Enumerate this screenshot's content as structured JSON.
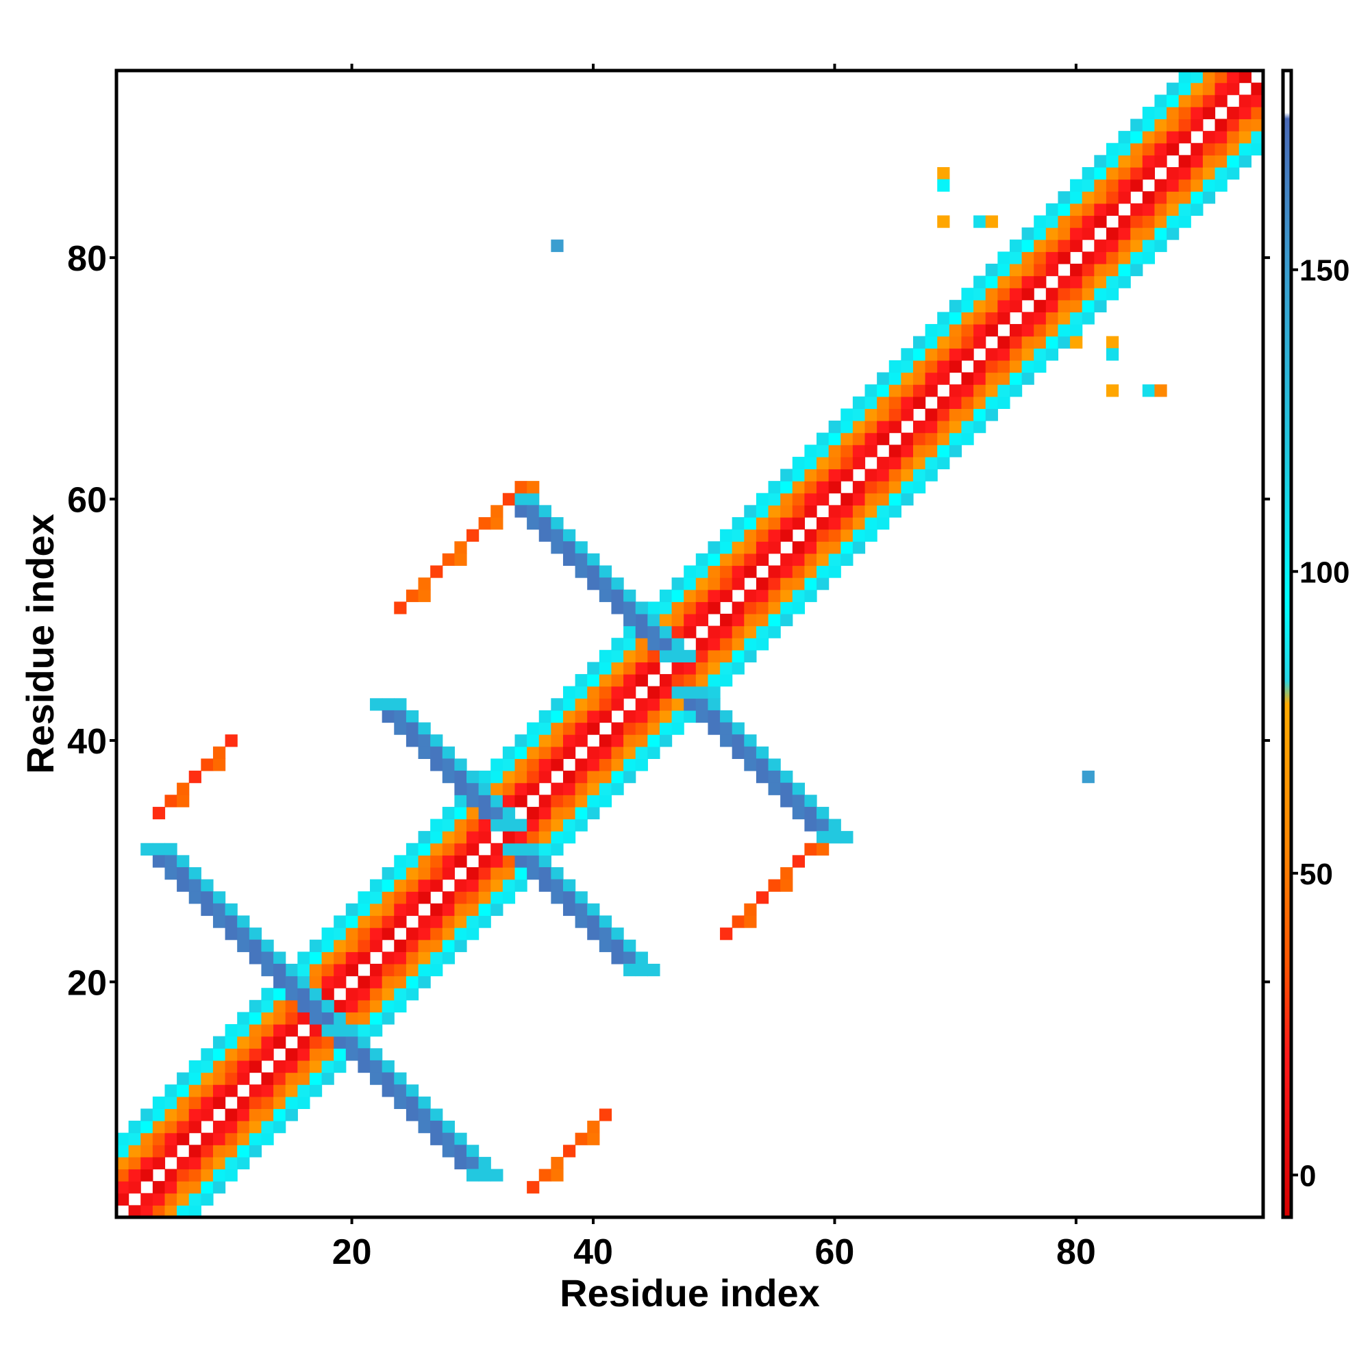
{
  "chart_data": {
    "type": "heatmap",
    "title": "",
    "xlabel": "Residue index",
    "ylabel": "Residue index",
    "xlim": [
      0.5,
      95.5
    ],
    "ylim": [
      0.5,
      95.5
    ],
    "x_ticks": [
      20,
      40,
      60,
      80
    ],
    "y_ticks": [
      20,
      40,
      60,
      80
    ],
    "x_tick_labels": [
      "20",
      "40",
      "60",
      "80"
    ],
    "y_tick_labels": [
      "20",
      "40",
      "60",
      "80"
    ],
    "grid": false,
    "legend": "colorbar-right",
    "colorbar": {
      "range": [
        -7,
        183
      ],
      "ticks": [
        0,
        50,
        100,
        150
      ],
      "tick_labels": [
        "0",
        "50",
        "100",
        "150"
      ],
      "stops": [
        {
          "value": -7,
          "color": "#d80000"
        },
        {
          "value": 20,
          "color": "#ff1a1a"
        },
        {
          "value": 35,
          "color": "#ff5500"
        },
        {
          "value": 55,
          "color": "#ff8800"
        },
        {
          "value": 78,
          "color": "#ffaa00"
        },
        {
          "value": 82,
          "color": "#28d8e8"
        },
        {
          "value": 95,
          "color": "#00ffff"
        },
        {
          "value": 120,
          "color": "#22c8e0"
        },
        {
          "value": 150,
          "color": "#3a9ed0"
        },
        {
          "value": 175,
          "color": "#4a6ab8"
        },
        {
          "value": 176,
          "color": "#ffffff"
        },
        {
          "value": 183,
          "color": "#ffffff"
        }
      ]
    },
    "diagonal_bands": [
      {
        "name": "helix-a",
        "x0": 1,
        "y0": 1,
        "len": 12,
        "phase": 0
      },
      {
        "name": "turn-a",
        "x0": 13,
        "y0": 13,
        "len": 6,
        "phase": 1
      },
      {
        "name": "helix-b",
        "x0": 18,
        "y0": 18,
        "len": 14,
        "phase": 0
      },
      {
        "name": "helix-c",
        "x0": 32,
        "y0": 32,
        "len": 12,
        "phase": 0
      },
      {
        "name": "helix-d",
        "x0": 43,
        "y0": 43,
        "len": 15,
        "phase": 1
      },
      {
        "name": "helix-e",
        "x0": 58,
        "y0": 58,
        "len": 6,
        "phase": 0
      },
      {
        "name": "helix-f",
        "x0": 63,
        "y0": 63,
        "len": 33,
        "phase": 1
      }
    ],
    "anti_bands": [
      {
        "name": "sheet-1",
        "x_start": 3,
        "y_start": 31,
        "length": 16,
        "width": 3,
        "value": 165
      },
      {
        "name": "sheet-1b",
        "x_start": 18,
        "y_start": 16,
        "length": 13,
        "width": 3,
        "value": 165
      },
      {
        "name": "sheet-2",
        "x_start": 22,
        "y_start": 43,
        "length": 11,
        "width": 3,
        "value": 165
      },
      {
        "name": "sheet-2b",
        "x_start": 33,
        "y_start": 31,
        "length": 11,
        "width": 3,
        "value": 165
      },
      {
        "name": "sheet-3",
        "x_start": 33,
        "y_start": 60,
        "length": 14,
        "width": 3,
        "value": 165
      },
      {
        "name": "sheet-3b",
        "x_start": 47,
        "y_start": 44,
        "length": 13,
        "width": 3,
        "value": 165
      }
    ],
    "anti_lines": [
      {
        "name": "long-range-1",
        "x_start": 4,
        "y_start": 34,
        "length": 7,
        "value": 25
      },
      {
        "name": "long-range-2",
        "x_start": 24,
        "y_start": 51,
        "length": 11,
        "value": 30
      },
      {
        "name": "long-range-3",
        "x_start": 35,
        "y_start": 3,
        "length": 7,
        "value": 30
      },
      {
        "name": "long-range-4",
        "x_start": 51,
        "y_start": 24,
        "length": 8,
        "value": 25
      }
    ],
    "points": [
      {
        "x": 37,
        "y": 81,
        "value": 150
      },
      {
        "x": 81,
        "y": 37,
        "value": 150
      },
      {
        "x": 69,
        "y": 87,
        "value": 75
      },
      {
        "x": 69,
        "y": 86,
        "value": 100
      },
      {
        "x": 69,
        "y": 83,
        "value": 75
      },
      {
        "x": 72,
        "y": 83,
        "value": 110
      },
      {
        "x": 73,
        "y": 83,
        "value": 75
      },
      {
        "x": 80,
        "y": 73,
        "value": 75
      },
      {
        "x": 83,
        "y": 73,
        "value": 75
      },
      {
        "x": 83,
        "y": 72,
        "value": 110
      },
      {
        "x": 83,
        "y": 69,
        "value": 75
      },
      {
        "x": 86,
        "y": 69,
        "value": 110
      },
      {
        "x": 87,
        "y": 69,
        "value": 55
      },
      {
        "x": 59,
        "y": 65,
        "value": 110
      },
      {
        "x": 65,
        "y": 59,
        "value": 110
      }
    ]
  }
}
